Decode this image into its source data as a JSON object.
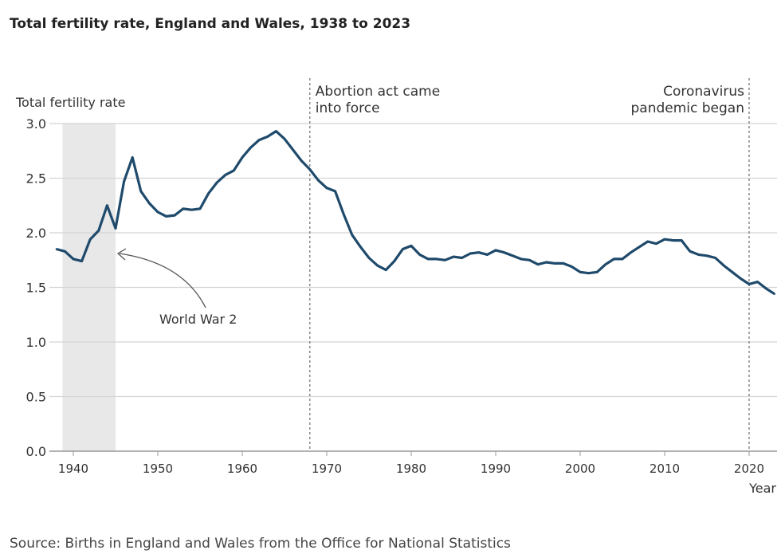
{
  "chart_data": {
    "type": "line",
    "title": "Total fertility rate, England and Wales, 1938 to 2023",
    "ylabel": "Total fertility rate",
    "xlabel": "Year",
    "ylim": [
      0,
      3.0
    ],
    "xlim": [
      1938,
      2023
    ],
    "yticks": [
      "0.0",
      "0.5",
      "1.0",
      "1.5",
      "2.0",
      "2.5",
      "3.0"
    ],
    "xticks": [
      "1940",
      "1950",
      "1960",
      "1970",
      "1980",
      "1990",
      "2000",
      "2010",
      "2020"
    ],
    "grid": "horizontal",
    "line_color": "#1f4a6b",
    "x": [
      1938,
      1939,
      1940,
      1941,
      1942,
      1943,
      1944,
      1945,
      1946,
      1947,
      1948,
      1949,
      1950,
      1951,
      1952,
      1953,
      1954,
      1955,
      1956,
      1957,
      1958,
      1959,
      1960,
      1961,
      1962,
      1963,
      1964,
      1965,
      1966,
      1967,
      1968,
      1969,
      1970,
      1971,
      1972,
      1973,
      1974,
      1975,
      1976,
      1977,
      1978,
      1979,
      1980,
      1981,
      1982,
      1983,
      1984,
      1985,
      1986,
      1987,
      1988,
      1989,
      1990,
      1991,
      1992,
      1993,
      1994,
      1995,
      1996,
      1997,
      1998,
      1999,
      2000,
      2001,
      2002,
      2003,
      2004,
      2005,
      2006,
      2007,
      2008,
      2009,
      2010,
      2011,
      2012,
      2013,
      2014,
      2015,
      2016,
      2017,
      2018,
      2019,
      2020,
      2021,
      2022,
      2023
    ],
    "values": [
      1.85,
      1.83,
      1.76,
      1.74,
      1.94,
      2.02,
      2.25,
      2.04,
      2.47,
      2.69,
      2.38,
      2.27,
      2.19,
      2.15,
      2.16,
      2.22,
      2.21,
      2.22,
      2.36,
      2.46,
      2.53,
      2.57,
      2.69,
      2.78,
      2.85,
      2.88,
      2.93,
      2.86,
      2.76,
      2.66,
      2.58,
      2.48,
      2.41,
      2.38,
      2.17,
      1.98,
      1.87,
      1.77,
      1.7,
      1.66,
      1.74,
      1.85,
      1.88,
      1.8,
      1.76,
      1.76,
      1.75,
      1.78,
      1.77,
      1.81,
      1.82,
      1.8,
      1.84,
      1.82,
      1.79,
      1.76,
      1.75,
      1.71,
      1.73,
      1.72,
      1.72,
      1.69,
      1.64,
      1.63,
      1.64,
      1.71,
      1.76,
      1.76,
      1.82,
      1.87,
      1.92,
      1.9,
      1.94,
      1.93,
      1.93,
      1.83,
      1.8,
      1.79,
      1.77,
      1.7,
      1.64,
      1.58,
      1.53,
      1.55,
      1.49,
      1.44
    ],
    "shaded_region": {
      "from": 1939,
      "to": 1945,
      "label": "World War 2",
      "color": "#e8e8e8"
    },
    "annotations": [
      {
        "year": 1968,
        "lines": [
          "Abortion act came",
          "into force"
        ]
      },
      {
        "year": 2020,
        "lines": [
          "Coronavirus",
          "pandemic began"
        ]
      }
    ],
    "source": "Source: Births in England and Wales from the Office for National Statistics"
  }
}
